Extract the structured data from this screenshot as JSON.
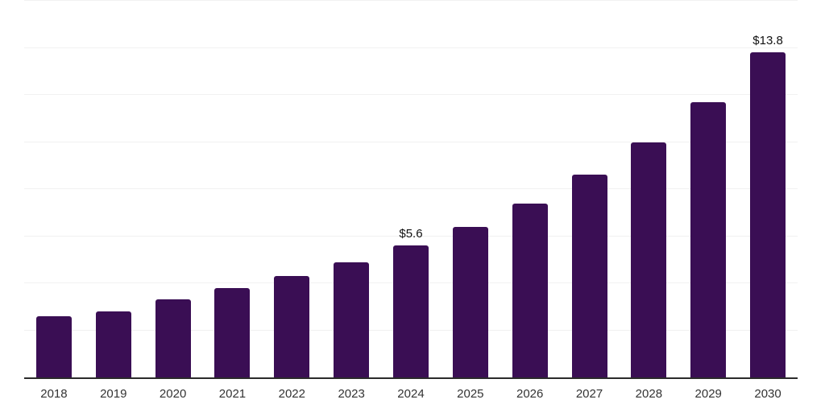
{
  "chart_data": {
    "type": "bar",
    "title": "",
    "xlabel": "",
    "ylabel": "",
    "categories": [
      "2018",
      "2019",
      "2020",
      "2021",
      "2022",
      "2023",
      "2024",
      "2025",
      "2026",
      "2027",
      "2028",
      "2029",
      "2030"
    ],
    "values": [
      2.6,
      2.8,
      3.3,
      3.8,
      4.3,
      4.9,
      5.6,
      6.4,
      7.4,
      8.6,
      10.0,
      11.7,
      13.8
    ],
    "data_labels": [
      "",
      "",
      "",
      "",
      "",
      "",
      "$5.6",
      "",
      "",
      "",
      "",
      "",
      "$13.8"
    ],
    "ylim": [
      0,
      16
    ],
    "gridline_step": 2,
    "grid": true,
    "y_axis_labels_visible": false,
    "legend": "none"
  },
  "colors": {
    "bar": "#3a0e54",
    "gridline": "#f1f1f1",
    "axis_line": "#2b2b2b",
    "tick_text": "#333333",
    "data_label_text": "#111111",
    "background": "#ffffff"
  }
}
